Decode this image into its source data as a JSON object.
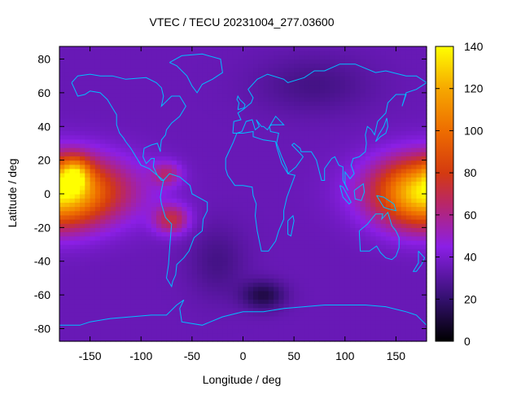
{
  "chart_data": {
    "type": "heatmap",
    "title": "VTEC / TECU 20231004_277.03600",
    "xlabel": "Longitude / deg",
    "ylabel": "Latitude / deg",
    "xlim": [
      -180,
      180
    ],
    "ylim": [
      -87.5,
      87.5
    ],
    "x_ticks": [
      -150,
      -100,
      -50,
      0,
      50,
      100,
      150
    ],
    "y_ticks": [
      -80,
      -60,
      -40,
      -20,
      0,
      20,
      40,
      60,
      80
    ],
    "colorbar": {
      "label": "",
      "range": [
        0,
        140
      ],
      "ticks": [
        0,
        20,
        40,
        60,
        80,
        100,
        120,
        140
      ],
      "stops": [
        {
          "value": 0,
          "color": "#000000"
        },
        {
          "value": 20,
          "color": "#33106e"
        },
        {
          "value": 45,
          "color": "#8b1fe6"
        },
        {
          "value": 65,
          "color": "#b8266a"
        },
        {
          "value": 80,
          "color": "#d43a10"
        },
        {
          "value": 100,
          "color": "#ee6d00"
        },
        {
          "value": 120,
          "color": "#f6a800"
        },
        {
          "value": 140,
          "color": "#ffff00"
        }
      ]
    },
    "grid_resolution": {
      "dlon": 5,
      "dlat": 2.5
    },
    "field_components": [
      {
        "name": "pacific-equatorial-maximum",
        "lon": -170,
        "lat": 2,
        "amplitude": 55,
        "sigma_lon": 45,
        "sigma_lat": 14
      },
      {
        "name": "pacific-hotspot",
        "lon": -165,
        "lat": 12,
        "amplitude": 45,
        "sigma_lon": 10,
        "sigma_lat": 7
      },
      {
        "name": "west-pacific-maximum",
        "lon": 175,
        "lat": 0,
        "amplitude": 50,
        "sigma_lon": 30,
        "sigma_lat": 14
      },
      {
        "name": "south-america-maximum",
        "lon": -70,
        "lat": -15,
        "amplitude": 35,
        "sigma_lon": 12,
        "sigma_lat": 6
      },
      {
        "name": "central-america-maximum",
        "lon": -75,
        "lat": 12,
        "amplitude": 25,
        "sigma_lon": 10,
        "sigma_lat": 5
      },
      {
        "name": "south-atlantic-low",
        "lon": 20,
        "lat": -60,
        "amplitude": -22,
        "sigma_lon": 15,
        "sigma_lat": 6
      },
      {
        "name": "atlantic-low",
        "lon": -25,
        "lat": -40,
        "amplitude": -10,
        "sigma_lon": 20,
        "sigma_lat": 15
      },
      {
        "name": "north-asia-low",
        "lon": 70,
        "lat": 65,
        "amplitude": -10,
        "sigma_lon": 40,
        "sigma_lat": 12
      }
    ],
    "field_background": 35,
    "coastline_color": "#00bfff"
  }
}
